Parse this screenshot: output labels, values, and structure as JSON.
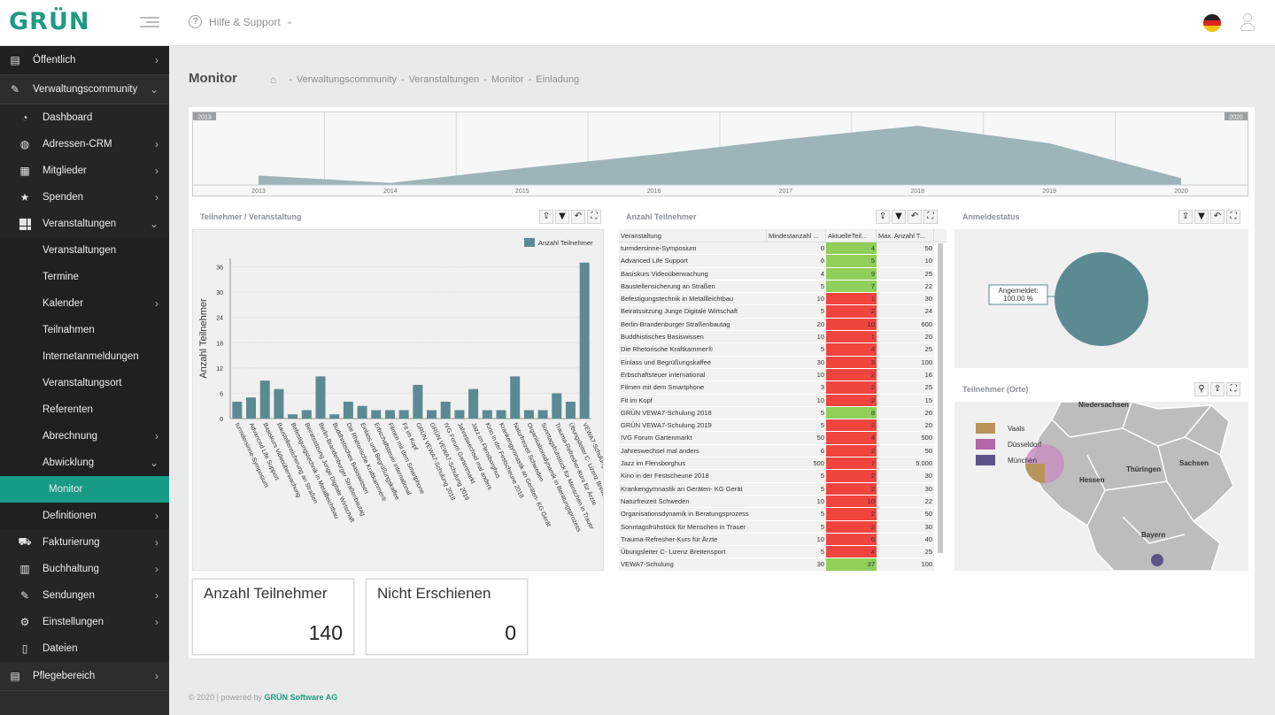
{
  "app": {
    "logo": "GRÜN"
  },
  "topbar": {
    "help_label": "Hilfe & Support"
  },
  "sidebar": {
    "items": [
      {
        "label": "Öffentlich",
        "icon": "news-icon",
        "level": 1,
        "arrow": "›"
      },
      {
        "label": "Verwaltungscommunity",
        "icon": "pencil-icon",
        "level": 1,
        "arrow": "⌄"
      },
      {
        "label": "Dashboard",
        "icon": "gauge-icon",
        "level": 2
      },
      {
        "label": "Adressen-CRM",
        "icon": "globe-icon",
        "level": 2,
        "arrow": "›"
      },
      {
        "label": "Mitglieder",
        "icon": "grid-list-icon",
        "level": 2,
        "arrow": "›"
      },
      {
        "label": "Spenden",
        "icon": "star-icon",
        "level": 2,
        "arrow": "›"
      },
      {
        "label": "Veranstaltungen",
        "icon": "grid-icon",
        "level": 2,
        "arrow": "⌄"
      },
      {
        "label": "Veranstaltungen",
        "level": 3
      },
      {
        "label": "Termine",
        "level": 3
      },
      {
        "label": "Kalender",
        "level": 3,
        "arrow": "›"
      },
      {
        "label": "Teilnahmen",
        "level": 3
      },
      {
        "label": "Internetanmeldungen",
        "level": 3
      },
      {
        "label": "Veranstaltungsort",
        "level": 3
      },
      {
        "label": "Referenten",
        "level": 3
      },
      {
        "label": "Abrechnung",
        "level": 3,
        "arrow": "›"
      },
      {
        "label": "Abwicklung",
        "level": 3,
        "arrow": "⌄"
      },
      {
        "label": "Monitor",
        "level": 4,
        "active": true
      },
      {
        "label": "Definitionen",
        "level": 3,
        "arrow": "›"
      },
      {
        "label": "Fakturierung",
        "icon": "cart-icon",
        "level": 2,
        "arrow": "›"
      },
      {
        "label": "Buchhaltung",
        "icon": "book-icon",
        "level": 2,
        "arrow": "›"
      },
      {
        "label": "Sendungen",
        "icon": "pencil-icon",
        "level": 2,
        "arrow": "›"
      },
      {
        "label": "Einstellungen",
        "icon": "gear-icon",
        "level": 2,
        "arrow": "›"
      },
      {
        "label": "Dateien",
        "icon": "file-icon",
        "level": 2
      },
      {
        "label": "Pflegebereich",
        "icon": "news-icon",
        "level": 1,
        "arrow": "›"
      }
    ]
  },
  "page": {
    "title": "Monitor",
    "breadcrumb": [
      "Verwaltungscommunity",
      "Veranstaltungen",
      "Monitor",
      "Einladung"
    ]
  },
  "timeline": {
    "range_start": "2013",
    "range_end": "2020",
    "years": [
      "2013",
      "2014",
      "2015",
      "2016",
      "2017",
      "2018",
      "2019",
      "2020"
    ],
    "values": [
      14,
      3,
      25,
      45,
      68,
      88,
      62,
      10
    ],
    "color": "#9db4b9"
  },
  "widgets": {
    "teilnehmer_veranstaltung": {
      "title": "Teilnehmer / Veranstaltung"
    },
    "anzahl_teilnehmer": {
      "title": "Anzahl Teilnehmer"
    },
    "anmeldestatus": {
      "title": "Anmeldestatus",
      "label": "Angemeldet:",
      "value": "100,00 %"
    },
    "orte": {
      "title": "Teilnehmer (Orte)"
    }
  },
  "chart_data": [
    {
      "type": "bar",
      "ylabel": "Anzahl Teilnehmer",
      "ylim": [
        0,
        38
      ],
      "yticks": [
        0,
        6,
        12,
        18,
        24,
        30,
        36
      ],
      "series": [
        {
          "name": "Anzahl Teilnehmer",
          "color": "#5c8a93",
          "values": [
            4,
            5,
            9,
            7,
            1,
            2,
            10,
            1,
            4,
            3,
            2,
            2,
            2,
            8,
            2,
            4,
            2,
            7,
            2,
            2,
            10,
            2,
            2,
            6,
            4,
            37
          ]
        }
      ],
      "categories": [
        " turmdersinne-Symposium",
        "Advanced Life Support",
        "Basiskurs Videoüberwachung",
        "Baustellensicherung an Straßen",
        "Befestigungstechnik in Metallleichtbau",
        "Beiratssitzung Junge Digitale Wirtschaft",
        "Berlin-Brandenburger Straßenbautag",
        "Buddhistisches Basiswissen",
        "Die Rhetorische Kraftkammer®",
        "Einlass und Begrüßungskaffee",
        "Erbschaftsteuer international",
        "Filmen mit dem Smartphone",
        "Fit im Kopf",
        "GRÜN VEWA7-Schulung 2018",
        "GRÜN VEWA7-Schulung 2019",
        "IVG Forum Gartenmarkt",
        "Jahreswechsel mal anders",
        "Jazz im Flensborghus",
        "Kino in der Festscheune 2018",
        "Krankengymnastik an Geräten- KG Gerät",
        "Naturfreizeit Schweden",
        "Organisationsdynamik in Beratungsprozess",
        "Sonntagsfrühstück für Menschen in Trauer",
        "Trauma-Refresher-Kurs für Ärzte",
        "Übungsleiter C- Lizenz Breitensport",
        "VEWA7-Schulung"
      ]
    },
    {
      "type": "pie",
      "values": [
        100
      ],
      "categories": [
        "Angemeldet"
      ],
      "color": "#5c8a93"
    }
  ],
  "grid": {
    "headers": [
      "Veranstaltung",
      "Mindestanzahl ...",
      "AktuelleTeil...",
      "Max. Anzahl T..."
    ],
    "rows": [
      {
        "name": " turmdersinne-Symposium",
        "min": "0",
        "cur": "4",
        "max": "50",
        "status": "green"
      },
      {
        "name": "Advanced Life Support",
        "min": "0",
        "cur": "5",
        "max": "10",
        "status": "green"
      },
      {
        "name": "Basiskurs Videoüberwachung",
        "min": "4",
        "cur": "9",
        "max": "25",
        "status": "green"
      },
      {
        "name": "Baustellensicherung an Straßen",
        "min": "5",
        "cur": "7",
        "max": "22",
        "status": "green"
      },
      {
        "name": "Befestigungstechnik in Metallleichtbau",
        "min": "10",
        "cur": "1",
        "max": "30",
        "status": "red"
      },
      {
        "name": "Beiratssitzung Junge Digitale Wirtschaft",
        "min": "5",
        "cur": "2",
        "max": "24",
        "status": "red"
      },
      {
        "name": "Berlin-Brandenburger Straßenbautag",
        "min": "20",
        "cur": "10",
        "max": "600",
        "status": "red"
      },
      {
        "name": "Buddhistisches Basiswissen",
        "min": "10",
        "cur": "1",
        "max": "20",
        "status": "red"
      },
      {
        "name": "Die Rhetorische Kraftkammer®",
        "min": "5",
        "cur": "4",
        "max": "25",
        "status": "red"
      },
      {
        "name": "Einlass und Begrüßungskaffee",
        "min": "30",
        "cur": "3",
        "max": "100",
        "status": "red"
      },
      {
        "name": "Erbschaftsteuer international",
        "min": "10",
        "cur": "2",
        "max": "16",
        "status": "red"
      },
      {
        "name": "Filmen mit dem Smartphone",
        "min": "3",
        "cur": "2",
        "max": "25",
        "status": "red"
      },
      {
        "name": "Fit im Kopf",
        "min": "10",
        "cur": "2",
        "max": "15",
        "status": "red"
      },
      {
        "name": "GRÜN VEWA7-Schulung 2018",
        "min": "5",
        "cur": "8",
        "max": "20",
        "status": "green"
      },
      {
        "name": "GRÜN VEWA7-Schulung 2019",
        "min": "5",
        "cur": "2",
        "max": "20",
        "status": "red"
      },
      {
        "name": "IVG Forum Gartenmarkt",
        "min": "50",
        "cur": "4",
        "max": "500",
        "status": "red"
      },
      {
        "name": "Jahreswechsel mal anders",
        "min": "6",
        "cur": "2",
        "max": "50",
        "status": "red"
      },
      {
        "name": "Jazz im Flensborghus",
        "min": "500",
        "cur": "7",
        "max": "5.000",
        "status": "red"
      },
      {
        "name": "Kino in der Festscheune 2018",
        "min": "5",
        "cur": "2",
        "max": "30",
        "status": "red"
      },
      {
        "name": "Krankengymnastik an Geräten- KG Gerät",
        "min": "5",
        "cur": "2",
        "max": "30",
        "status": "red"
      },
      {
        "name": "Naturfreizeit Schweden",
        "min": "10",
        "cur": "10",
        "max": "22",
        "status": "red"
      },
      {
        "name": "Organisationsdynamik in Beratungsprozess",
        "min": "5",
        "cur": "2",
        "max": "50",
        "status": "red"
      },
      {
        "name": "Sonntagsfrühstück für Menschen in Trauer",
        "min": "5",
        "cur": "2",
        "max": "30",
        "status": "red"
      },
      {
        "name": "Trauma-Refresher-Kurs für Ärzte",
        "min": "10",
        "cur": "6",
        "max": "40",
        "status": "red"
      },
      {
        "name": "Übungsleiter C- Lizenz Breitensport",
        "min": "5",
        "cur": "4",
        "max": "25",
        "status": "red"
      },
      {
        "name": "VEWA7-Schulung",
        "min": "30",
        "cur": "37",
        "max": "100",
        "status": "green"
      }
    ]
  },
  "map": {
    "legend": [
      {
        "label": "Vaals",
        "color": "#b8935a"
      },
      {
        "label": "Düsseldorf",
        "color": "#b466a8"
      },
      {
        "label": "München",
        "color": "#5b5488"
      }
    ],
    "regions": [
      "Niedersachsen",
      "Thüringen",
      "Sachsen",
      "Hessen",
      "Bayern"
    ]
  },
  "cards": [
    {
      "title": "Anzahl Teilnehmer",
      "value": "140"
    },
    {
      "title": "Nicht Erschienen",
      "value": "0"
    }
  ],
  "footer": {
    "text": "© 2020 | powered by ",
    "brand": "GRÜN Software AG"
  },
  "colors": {
    "accent": "#179a86",
    "ok": "#8fcf5a",
    "bad": "#f0453f"
  }
}
